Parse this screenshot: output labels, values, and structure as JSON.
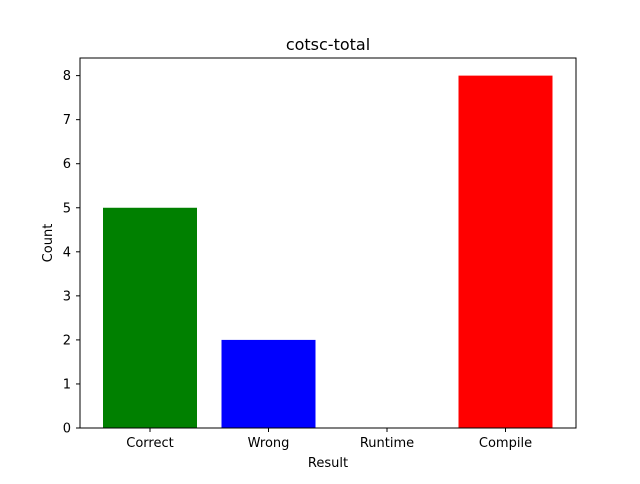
{
  "chart_data": {
    "type": "bar",
    "title": "cotsc-total",
    "xlabel": "Result",
    "ylabel": "Count",
    "categories": [
      "Correct",
      "Wrong",
      "Runtime",
      "Compile"
    ],
    "values": [
      5,
      2,
      0,
      8
    ],
    "colors": [
      "#008000",
      "#0000ff",
      "#ffffff",
      "#ff0000"
    ],
    "ylim": [
      0,
      8.4
    ],
    "yticks": [
      0,
      1,
      2,
      3,
      4,
      5,
      6,
      7,
      8
    ],
    "grid": false,
    "legend": "none"
  }
}
